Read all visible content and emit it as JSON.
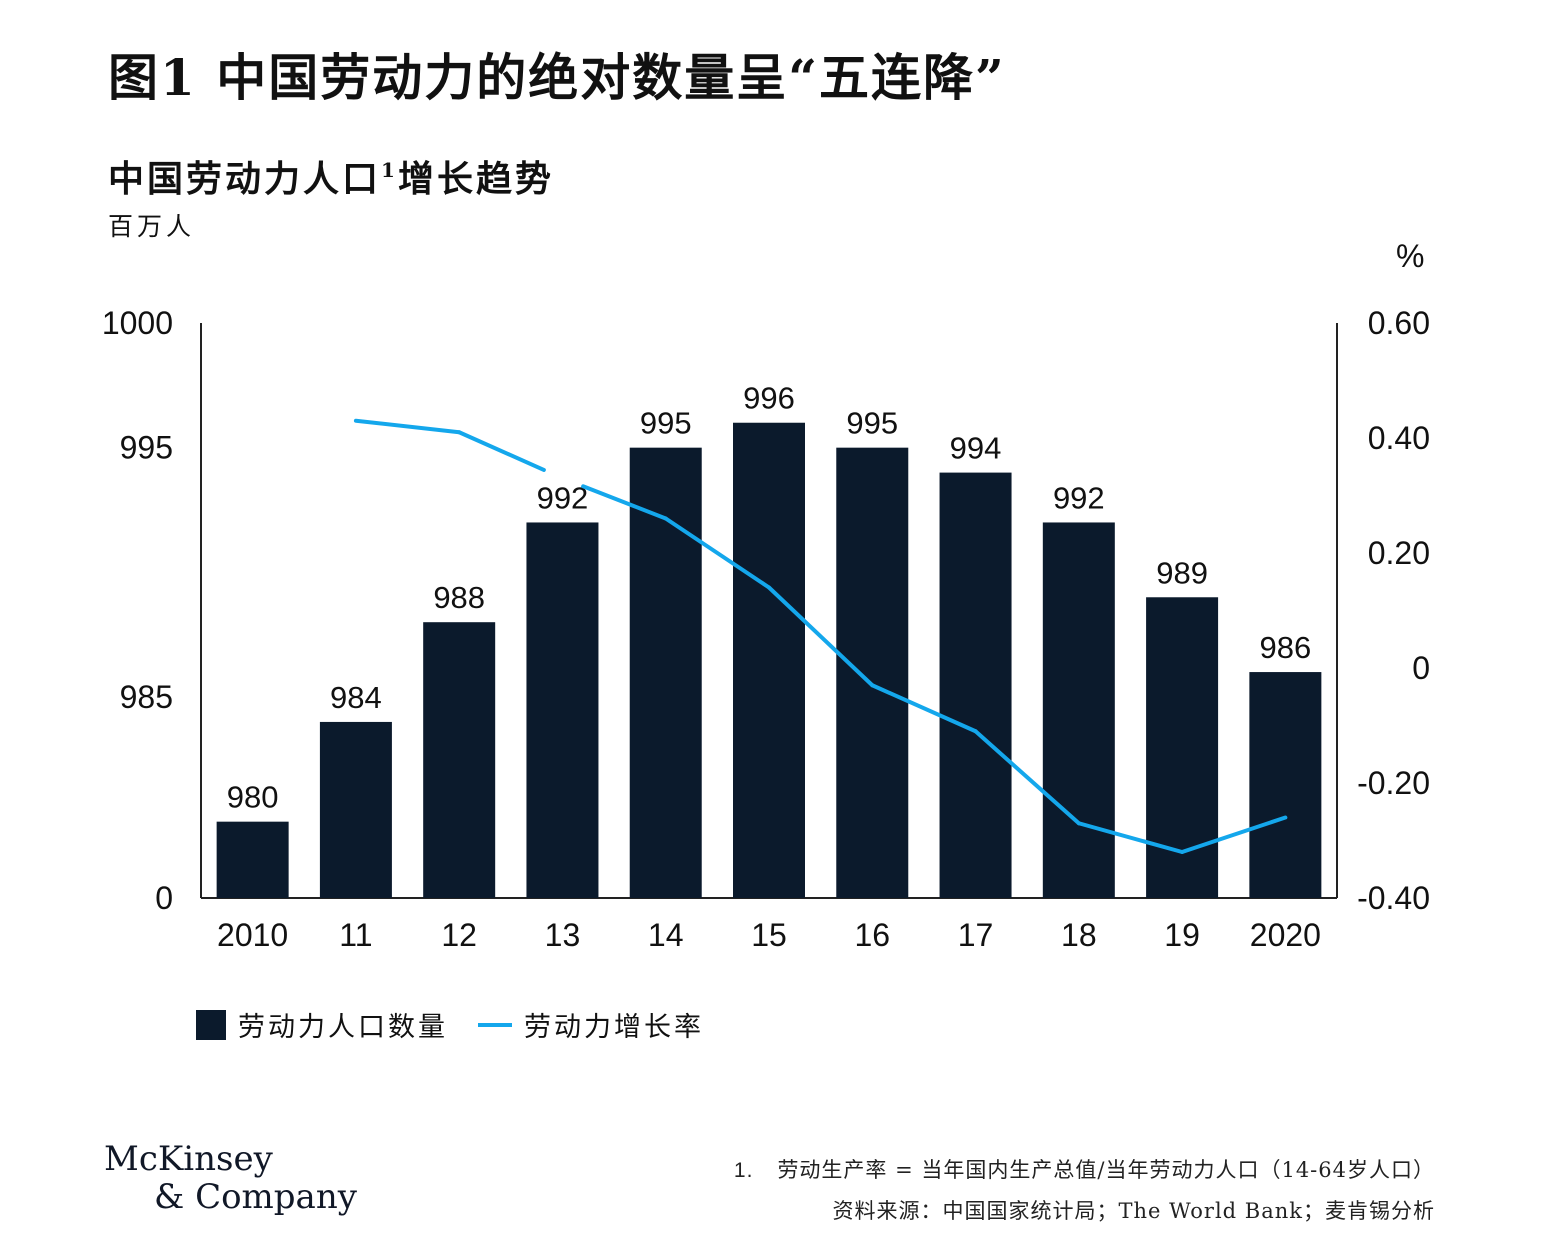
{
  "figure_title": "图1 中国劳动力的绝对数量呈“五连降”",
  "chart_title": "中国劳动力人口",
  "chart_title_sup": "1",
  "chart_title_suffix": "增长趋势",
  "unit_left": "百万人",
  "unit_right": "%",
  "legend": {
    "bar_label": "劳动力人口数量",
    "line_label": "劳动力增长率"
  },
  "brand": {
    "line1": "McKinsey",
    "line2": "& Company"
  },
  "footnote": {
    "number": "1.",
    "text": "劳动生产率 = 当年国内生产总值/当年劳动力人口（14-64岁人口）",
    "source": "资料来源：中国国家统计局；The World Bank；麦肯锡分析"
  },
  "colors": {
    "bar": "#0b1a2c",
    "line": "#14a7ec",
    "axis": "#222222"
  },
  "chart_data": {
    "type": "bar",
    "categories": [
      "2010",
      "11",
      "12",
      "13",
      "14",
      "15",
      "16",
      "17",
      "18",
      "19",
      "2020"
    ],
    "series": [
      {
        "name": "劳动力人口数量",
        "type": "bar",
        "axis": "left",
        "values": [
          980,
          984,
          988,
          992,
          995,
          996,
          995,
          994,
          992,
          989,
          986
        ]
      },
      {
        "name": "劳动力增长率",
        "type": "line",
        "axis": "right",
        "values": [
          null,
          0.43,
          0.41,
          0.33,
          0.26,
          0.14,
          -0.03,
          -0.11,
          -0.27,
          -0.32,
          -0.26
        ]
      }
    ],
    "y_left": {
      "ticks": [
        0,
        985,
        995,
        1000
      ],
      "tick_labels": [
        "0",
        "985",
        "995",
        "1000"
      ],
      "axis_break": true
    },
    "y_right": {
      "ylim": [
        -0.4,
        0.6
      ],
      "ticks": [
        -0.4,
        -0.2,
        0,
        0.2,
        0.4,
        0.6
      ],
      "tick_labels": [
        "-0.40",
        "-0.20",
        "0",
        "0.20",
        "0.40",
        "0.60"
      ],
      "unit": "%"
    },
    "data_labels": [
      "980",
      "984",
      "988",
      "992",
      "995",
      "996",
      "995",
      "994",
      "992",
      "989",
      "986"
    ],
    "grid": false,
    "legend_position": "bottom-left"
  }
}
